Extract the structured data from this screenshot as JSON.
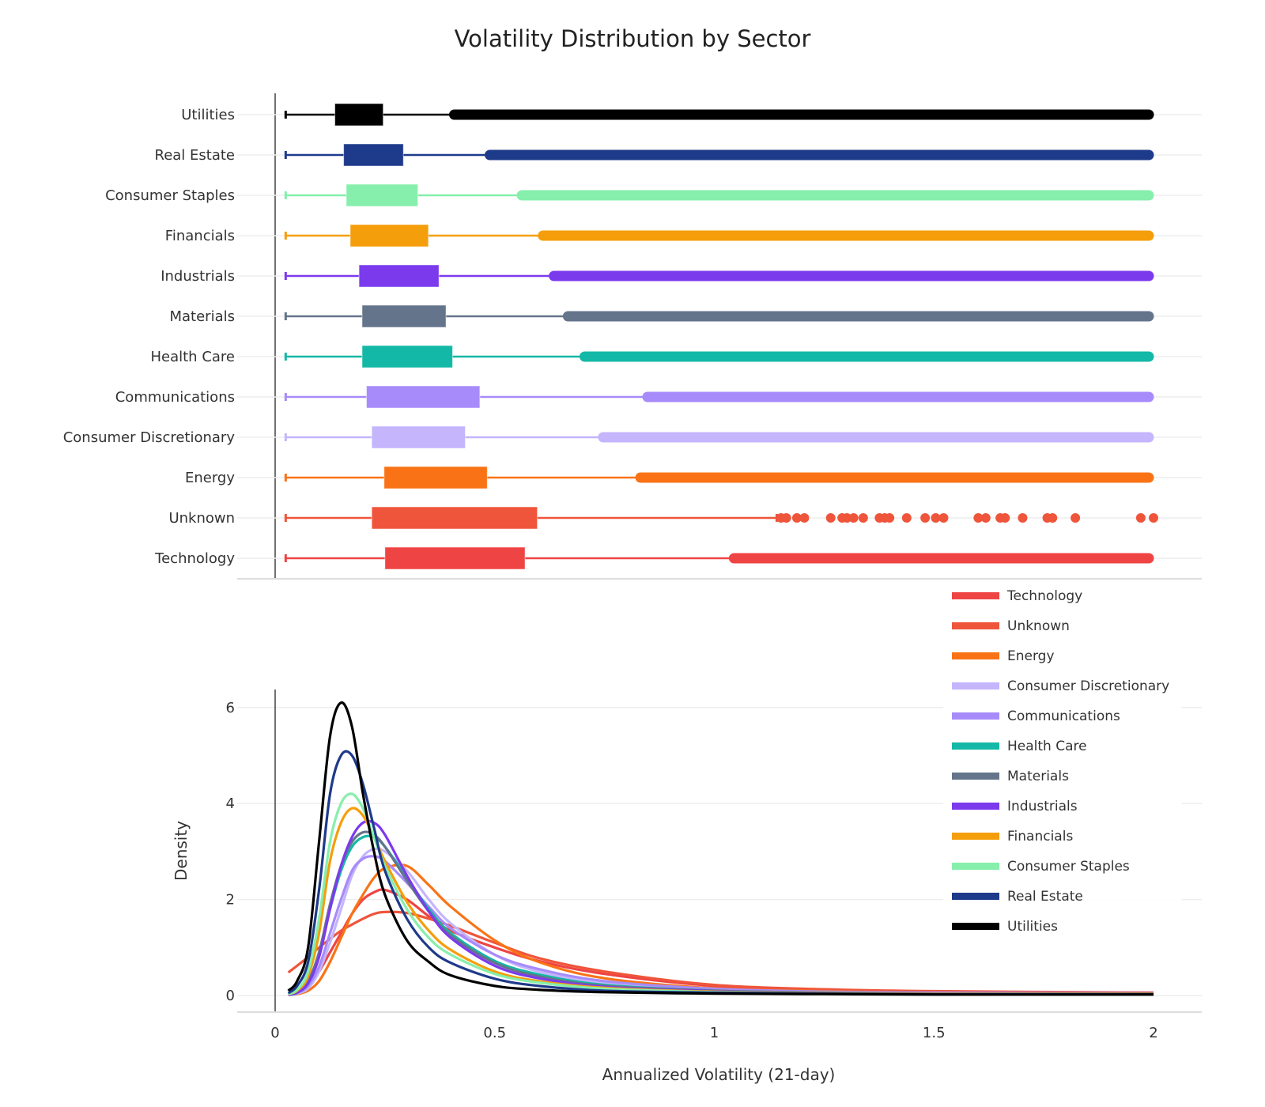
{
  "chart_data": [
    {
      "type": "box",
      "title": "Volatility Distribution by Sector",
      "orientation": "horizontal",
      "categories": [
        "Utilities",
        "Real Estate",
        "Consumer Staples",
        "Financials",
        "Industrials",
        "Materials",
        "Health Care",
        "Communications",
        "Consumer Discretionary",
        "Energy",
        "Unknown",
        "Technology"
      ],
      "xlim": [
        0,
        2
      ],
      "grid": true,
      "boxes": [
        {
          "name": "Utilities",
          "color": "#000000",
          "whisker_low": 0.024,
          "q1": 0.136,
          "q3": 0.246,
          "whisker_high": 0.397,
          "outliers_range": [
            0.397,
            2.0
          ]
        },
        {
          "name": "Real Estate",
          "color": "#1e3a8a",
          "whisker_low": 0.024,
          "q1": 0.156,
          "q3": 0.292,
          "whisker_high": 0.478,
          "outliers_range": [
            0.478,
            2.0
          ]
        },
        {
          "name": "Consumer Staples",
          "color": "#86efac",
          "whisker_low": 0.024,
          "q1": 0.162,
          "q3": 0.325,
          "whisker_high": 0.551,
          "outliers_range": [
            0.551,
            2.0
          ]
        },
        {
          "name": "Financials",
          "color": "#f59e0b",
          "whisker_low": 0.024,
          "q1": 0.171,
          "q3": 0.349,
          "whisker_high": 0.599,
          "outliers_range": [
            0.599,
            2.0
          ]
        },
        {
          "name": "Industrials",
          "color": "#7c3aed",
          "whisker_low": 0.024,
          "q1": 0.191,
          "q3": 0.373,
          "whisker_high": 0.624,
          "outliers_range": [
            0.624,
            2.0
          ]
        },
        {
          "name": "Materials",
          "color": "#64748b",
          "whisker_low": 0.024,
          "q1": 0.198,
          "q3": 0.389,
          "whisker_high": 0.656,
          "outliers_range": [
            0.656,
            2.0
          ]
        },
        {
          "name": "Health Care",
          "color": "#14b8a6",
          "whisker_low": 0.024,
          "q1": 0.198,
          "q3": 0.404,
          "whisker_high": 0.694,
          "outliers_range": [
            0.694,
            2.0
          ]
        },
        {
          "name": "Communications",
          "color": "#a78bfa",
          "whisker_low": 0.024,
          "q1": 0.208,
          "q3": 0.466,
          "whisker_high": 0.837,
          "outliers_range": [
            0.837,
            2.0
          ]
        },
        {
          "name": "Consumer Discretionary",
          "color": "#c4b5fd",
          "whisker_low": 0.024,
          "q1": 0.22,
          "q3": 0.433,
          "whisker_high": 0.736,
          "outliers_range": [
            0.736,
            2.0
          ]
        },
        {
          "name": "Energy",
          "color": "#f97316",
          "whisker_low": 0.024,
          "q1": 0.248,
          "q3": 0.483,
          "whisker_high": 0.821,
          "outliers_range": [
            0.821,
            2.0
          ]
        },
        {
          "name": "Unknown",
          "color": "#ef553b",
          "whisker_low": 0.024,
          "q1": 0.22,
          "q3": 0.597,
          "whisker_high": 1.142,
          "outliers": [
            1.152,
            1.164,
            1.188,
            1.205,
            1.265,
            1.291,
            1.302,
            1.317,
            1.339,
            1.376,
            1.388,
            1.399,
            1.438,
            1.48,
            1.504,
            1.522,
            1.601,
            1.618,
            1.651,
            1.662,
            1.702,
            1.758,
            1.77,
            1.822,
            1.971,
            2.0
          ]
        },
        {
          "name": "Technology",
          "color": "#ef4444",
          "whisker_low": 0.024,
          "q1": 0.25,
          "q3": 0.569,
          "whisker_high": 1.034,
          "outliers_range": [
            1.034,
            2.0
          ]
        }
      ]
    },
    {
      "type": "line",
      "xlabel": "Annualized Volatility (21-day)",
      "ylabel": "Density",
      "xlim": [
        0,
        2
      ],
      "ylim": [
        0,
        6.4
      ],
      "xticks": [
        "0",
        "0.5",
        "1",
        "1.5",
        "2"
      ],
      "xtick_values": [
        0,
        0.5,
        1,
        1.5,
        2
      ],
      "yticks": [
        "0",
        "2",
        "4",
        "6"
      ],
      "ytick_values": [
        0,
        2,
        4,
        6
      ],
      "grid": true,
      "legend_position": "right",
      "x": [
        0.03,
        0.05,
        0.075,
        0.1,
        0.125,
        0.15,
        0.175,
        0.2,
        0.225,
        0.25,
        0.3,
        0.35,
        0.4,
        0.5,
        0.6,
        0.75,
        1,
        1.25,
        1.5,
        2
      ],
      "series": [
        {
          "name": "Technology",
          "color": "#ef4444",
          "values": [
            0.01,
            0.05,
            0.2,
            0.5,
            0.9,
            1.3,
            1.7,
            2.0,
            2.15,
            2.2,
            2.0,
            1.65,
            1.35,
            1.0,
            0.72,
            0.45,
            0.2,
            0.12,
            0.08,
            0.06
          ]
        },
        {
          "name": "Unknown",
          "color": "#ef553b",
          "values": [
            0.48,
            0.62,
            0.8,
            1.0,
            1.18,
            1.35,
            1.48,
            1.6,
            1.7,
            1.74,
            1.72,
            1.6,
            1.45,
            1.1,
            0.78,
            0.5,
            0.22,
            0.13,
            0.09,
            0.06
          ]
        },
        {
          "name": "Energy",
          "color": "#f97316",
          "values": [
            0.01,
            0.03,
            0.1,
            0.3,
            0.7,
            1.2,
            1.7,
            2.1,
            2.45,
            2.65,
            2.7,
            2.3,
            1.85,
            1.15,
            0.7,
            0.36,
            0.15,
            0.09,
            0.06,
            0.05
          ]
        },
        {
          "name": "Consumer Discretionary",
          "color": "#c4b5fd",
          "values": [
            0.01,
            0.04,
            0.15,
            0.5,
            1.1,
            1.8,
            2.5,
            2.9,
            3.05,
            3.0,
            2.6,
            2.0,
            1.5,
            0.85,
            0.5,
            0.26,
            0.12,
            0.07,
            0.05,
            0.04
          ]
        },
        {
          "name": "Communications",
          "color": "#a78bfa",
          "values": [
            0.02,
            0.05,
            0.2,
            0.6,
            1.3,
            2.0,
            2.6,
            2.85,
            2.9,
            2.8,
            2.35,
            1.85,
            1.4,
            0.85,
            0.55,
            0.3,
            0.14,
            0.08,
            0.06,
            0.05
          ]
        },
        {
          "name": "Health Care",
          "color": "#14b8a6",
          "values": [
            0.02,
            0.06,
            0.28,
            0.85,
            1.8,
            2.6,
            3.1,
            3.3,
            3.3,
            3.1,
            2.45,
            1.8,
            1.3,
            0.72,
            0.44,
            0.22,
            0.1,
            0.06,
            0.04,
            0.04
          ]
        },
        {
          "name": "Materials",
          "color": "#64748b",
          "values": [
            0.02,
            0.07,
            0.3,
            0.9,
            1.9,
            2.7,
            3.2,
            3.4,
            3.35,
            3.1,
            2.4,
            1.75,
            1.25,
            0.68,
            0.4,
            0.2,
            0.1,
            0.06,
            0.04,
            0.04
          ]
        },
        {
          "name": "Industrials",
          "color": "#7c3aed",
          "values": [
            0.02,
            0.06,
            0.25,
            0.8,
            1.8,
            2.7,
            3.3,
            3.6,
            3.6,
            3.35,
            2.5,
            1.75,
            1.2,
            0.62,
            0.36,
            0.18,
            0.09,
            0.05,
            0.04,
            0.03
          ]
        },
        {
          "name": "Financials",
          "color": "#f59e0b",
          "values": [
            0.03,
            0.1,
            0.4,
            1.3,
            2.8,
            3.6,
            3.9,
            3.75,
            3.3,
            2.8,
            1.95,
            1.35,
            0.95,
            0.5,
            0.3,
            0.16,
            0.08,
            0.05,
            0.04,
            0.04
          ]
        },
        {
          "name": "Consumer Staples",
          "color": "#86efac",
          "values": [
            0.03,
            0.12,
            0.5,
            1.6,
            3.2,
            4.0,
            4.2,
            3.9,
            3.3,
            2.7,
            1.8,
            1.2,
            0.85,
            0.45,
            0.27,
            0.14,
            0.07,
            0.04,
            0.03,
            0.02
          ]
        },
        {
          "name": "Real Estate",
          "color": "#1e3a8a",
          "values": [
            0.05,
            0.2,
            0.7,
            2.2,
            4.2,
            5.0,
            5.0,
            4.4,
            3.5,
            2.6,
            1.6,
            1.0,
            0.68,
            0.35,
            0.2,
            0.1,
            0.06,
            0.04,
            0.03,
            0.03
          ]
        },
        {
          "name": "Utilities",
          "color": "#000000",
          "values": [
            0.1,
            0.3,
            1.0,
            3.2,
            5.4,
            6.1,
            5.6,
            4.2,
            3.0,
            2.1,
            1.15,
            0.7,
            0.42,
            0.2,
            0.12,
            0.07,
            0.04,
            0.03,
            0.02,
            0.02
          ]
        }
      ]
    }
  ]
}
